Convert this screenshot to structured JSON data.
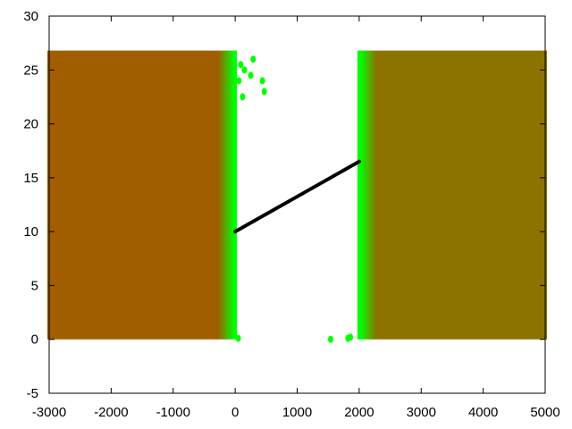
{
  "chart_data": {
    "type": "scatter",
    "title": "",
    "xlabel": "",
    "ylabel": "",
    "xlim": [
      -3000,
      5000
    ],
    "ylim": [
      -5,
      30
    ],
    "grid": false,
    "xticks": [
      -3000,
      -2000,
      -1000,
      0,
      1000,
      2000,
      3000,
      4000,
      5000
    ],
    "yticks": [
      -5,
      0,
      5,
      10,
      15,
      20,
      25,
      30
    ],
    "x_tick_labels": [
      "-3000",
      "-2000",
      "-1000",
      "0",
      "1000",
      "2000",
      "3000",
      "4000",
      "5000"
    ],
    "y_tick_labels": [
      "-5",
      "0",
      "5",
      "10",
      "15",
      "20",
      "25",
      "30"
    ],
    "regions": [
      {
        "id": "left-block",
        "x_range": [
          -3000,
          0
        ],
        "y_range": [
          0,
          26.8
        ],
        "color": "#a05e00",
        "edge_color": "#00ff00",
        "edge_side": "right"
      },
      {
        "id": "right-block",
        "x_range": [
          2000,
          5000
        ],
        "y_range": [
          0,
          26.8
        ],
        "color": "#8c7300",
        "edge_color": "#00ff00",
        "edge_side": "left"
      }
    ],
    "scatter_points": [
      {
        "x": 60,
        "y": 24.0
      },
      {
        "x": 90,
        "y": 25.5
      },
      {
        "x": 120,
        "y": 22.5
      },
      {
        "x": 150,
        "y": 25.0
      },
      {
        "x": 250,
        "y": 24.5
      },
      {
        "x": 290,
        "y": 26.0
      },
      {
        "x": 440,
        "y": 24.0
      },
      {
        "x": 470,
        "y": 23.0
      },
      {
        "x": 50,
        "y": 0.1
      },
      {
        "x": 1540,
        "y": 0.0
      },
      {
        "x": 1820,
        "y": 0.1
      },
      {
        "x": 1860,
        "y": 0.2
      }
    ],
    "line": {
      "color": "#000000",
      "x": [
        0,
        2000
      ],
      "y": [
        10.0,
        16.5
      ]
    }
  }
}
